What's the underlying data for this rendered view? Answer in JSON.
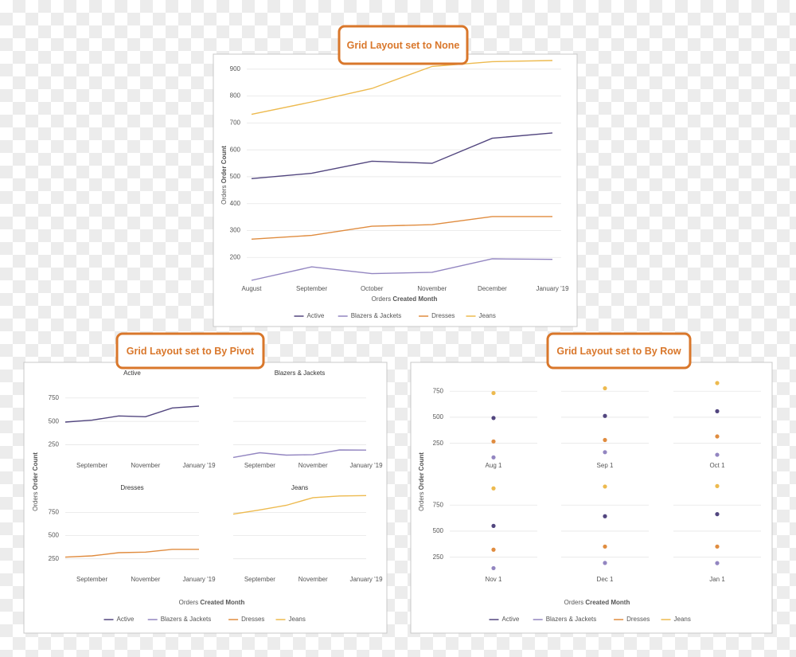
{
  "chart_data": [
    {
      "type": "line",
      "layout": "none",
      "callout": "Grid Layout set to None",
      "categories": [
        "August",
        "September",
        "October",
        "November",
        "December",
        "January '19"
      ],
      "x_title": "Orders",
      "x_title_bold": "Created Month",
      "y_title": "Orders",
      "y_title_bold": "Order Count",
      "series": [
        {
          "name": "Active",
          "color": "#52467f",
          "values": [
            493,
            513,
            558,
            550,
            643,
            663
          ]
        },
        {
          "name": "Blazers & Jackets",
          "color": "#9386c1",
          "values": [
            115,
            165,
            140,
            145,
            195,
            193
          ]
        },
        {
          "name": "Dresses",
          "color": "#e08c3f",
          "values": [
            268,
            282,
            316,
            322,
            352,
            352
          ]
        },
        {
          "name": "Jeans",
          "color": "#edba4f",
          "values": [
            732,
            778,
            828,
            910,
            928,
            932
          ]
        }
      ],
      "ylim": [
        115,
        935
      ],
      "yticks": [
        200,
        300,
        400,
        500,
        600,
        700,
        800,
        900
      ],
      "grid": true,
      "legend": "bottom"
    },
    {
      "type": "line",
      "layout": "pivot",
      "callout": "Grid Layout set to By Pivot",
      "categories": [
        null,
        "September",
        null,
        "November",
        null,
        "January '19"
      ],
      "x_title": "Orders",
      "x_title_bold": "Created Month",
      "y_title": "Orders",
      "y_title_bold": "Order Count",
      "series": [
        {
          "name": "Active",
          "color": "#52467f",
          "values": [
            493,
            513,
            558,
            550,
            643,
            663
          ]
        },
        {
          "name": "Blazers & Jackets",
          "color": "#9386c1",
          "values": [
            115,
            165,
            140,
            145,
            195,
            193
          ]
        },
        {
          "name": "Dresses",
          "color": "#e08c3f",
          "values": [
            268,
            282,
            316,
            322,
            352,
            352
          ]
        },
        {
          "name": "Jeans",
          "color": "#edba4f",
          "values": [
            732,
            778,
            828,
            910,
            928,
            932
          ]
        }
      ],
      "ylim": [
        110,
        935
      ],
      "yticks": [
        250,
        500,
        750
      ],
      "grid": true,
      "legend": "bottom"
    },
    {
      "type": "scatter",
      "layout": "row",
      "callout": "Grid Layout set to By Row",
      "categories": [
        "Aug 1",
        "Sep 1",
        "Oct 1",
        "Nov 1",
        "Dec 1",
        "Jan 1"
      ],
      "x_title": "Orders",
      "x_title_bold": "Created Month",
      "y_title": "Orders",
      "y_title_bold": "Order Count",
      "series": [
        {
          "name": "Active",
          "color": "#52467f",
          "values": [
            493,
            513,
            558,
            550,
            643,
            663
          ]
        },
        {
          "name": "Blazers & Jackets",
          "color": "#9386c1",
          "values": [
            115,
            165,
            140,
            145,
            195,
            193
          ]
        },
        {
          "name": "Dresses",
          "color": "#e08c3f",
          "values": [
            268,
            282,
            316,
            322,
            352,
            352
          ]
        },
        {
          "name": "Jeans",
          "color": "#edba4f",
          "values": [
            732,
            778,
            828,
            910,
            928,
            932
          ]
        }
      ],
      "ylim": [
        110,
        935
      ],
      "yticks": [
        250,
        500,
        750
      ],
      "grid": true,
      "legend": "bottom"
    }
  ]
}
